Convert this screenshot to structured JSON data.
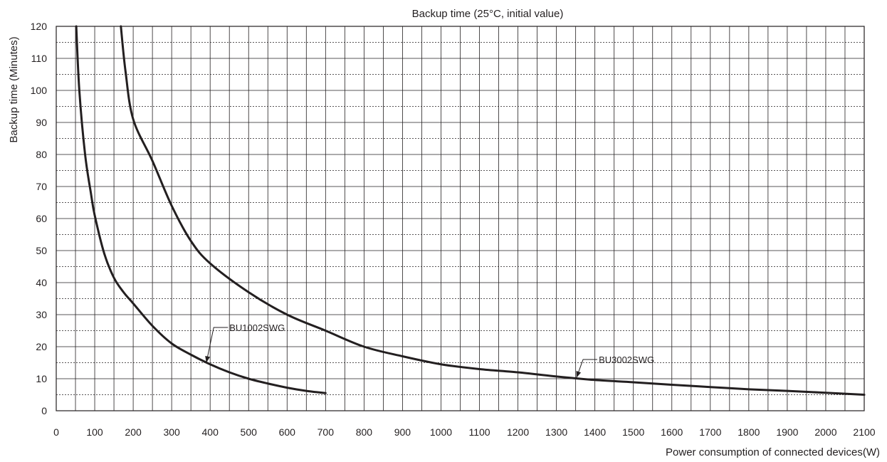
{
  "chart_data": {
    "type": "line",
    "title": "Backup time (25°C, initial value)",
    "xlabel": "Power consumption  of connected devices(W)",
    "ylabel": "Backup time (Minutes)",
    "xlim": [
      0,
      2100
    ],
    "ylim": [
      0,
      120
    ],
    "x_ticks": [
      0,
      100,
      200,
      300,
      400,
      500,
      600,
      700,
      800,
      900,
      1000,
      1100,
      1200,
      1300,
      1400,
      1500,
      1600,
      1700,
      1800,
      1900,
      2000,
      2100
    ],
    "x_tick_labels": [
      "0",
      "100",
      "200",
      "300",
      "400",
      "500",
      "600",
      "700",
      "800",
      "900",
      "1000",
      "1100",
      "1200",
      "1300",
      "1400",
      "1500",
      "1600",
      "1700",
      "1800",
      "1900",
      "2000",
      "2100"
    ],
    "y_ticks": [
      0,
      10,
      20,
      30,
      40,
      50,
      60,
      70,
      80,
      90,
      100,
      110,
      120
    ],
    "y_tick_labels": [
      "0",
      "10",
      "20",
      "30",
      "40",
      "50",
      "60",
      "70",
      "80",
      "90",
      "100",
      "110",
      "120"
    ],
    "x_minor_step": 50,
    "y_minor_step": 5,
    "grid": true,
    "colors": {
      "line": "#231f20",
      "text": "#231f20",
      "background": "#ffffff"
    },
    "series": [
      {
        "name": "BU1002SWG",
        "x": [
          52,
          60,
          75,
          90,
          100,
          125,
          150,
          175,
          200,
          250,
          300,
          350,
          400,
          450,
          500,
          550,
          600,
          650,
          700
        ],
        "y": [
          120,
          100,
          80,
          68,
          61,
          49,
          41.5,
          37,
          33.5,
          26.5,
          21,
          17.5,
          14.5,
          12,
          10,
          8.5,
          7.2,
          6.2,
          5.5
        ],
        "annotation": {
          "x": 390,
          "y": 15,
          "label_x": 450,
          "label_y": 26
        }
      },
      {
        "name": "BU3002SWG",
        "x": [
          168,
          180,
          200,
          250,
          300,
          350,
          400,
          500,
          600,
          700,
          800,
          900,
          1000,
          1100,
          1200,
          1300,
          1400,
          1500,
          1600,
          1700,
          1800,
          1900,
          2000,
          2100
        ],
        "y": [
          120,
          106,
          91,
          78,
          64,
          53,
          46,
          37,
          30,
          25,
          20,
          17,
          14.5,
          13,
          12,
          10.7,
          9.6,
          8.9,
          8.1,
          7.4,
          6.7,
          6.2,
          5.6,
          5
        ],
        "annotation": {
          "x": 1352,
          "y": 10.3,
          "label_x": 1410,
          "label_y": 16
        }
      }
    ]
  }
}
